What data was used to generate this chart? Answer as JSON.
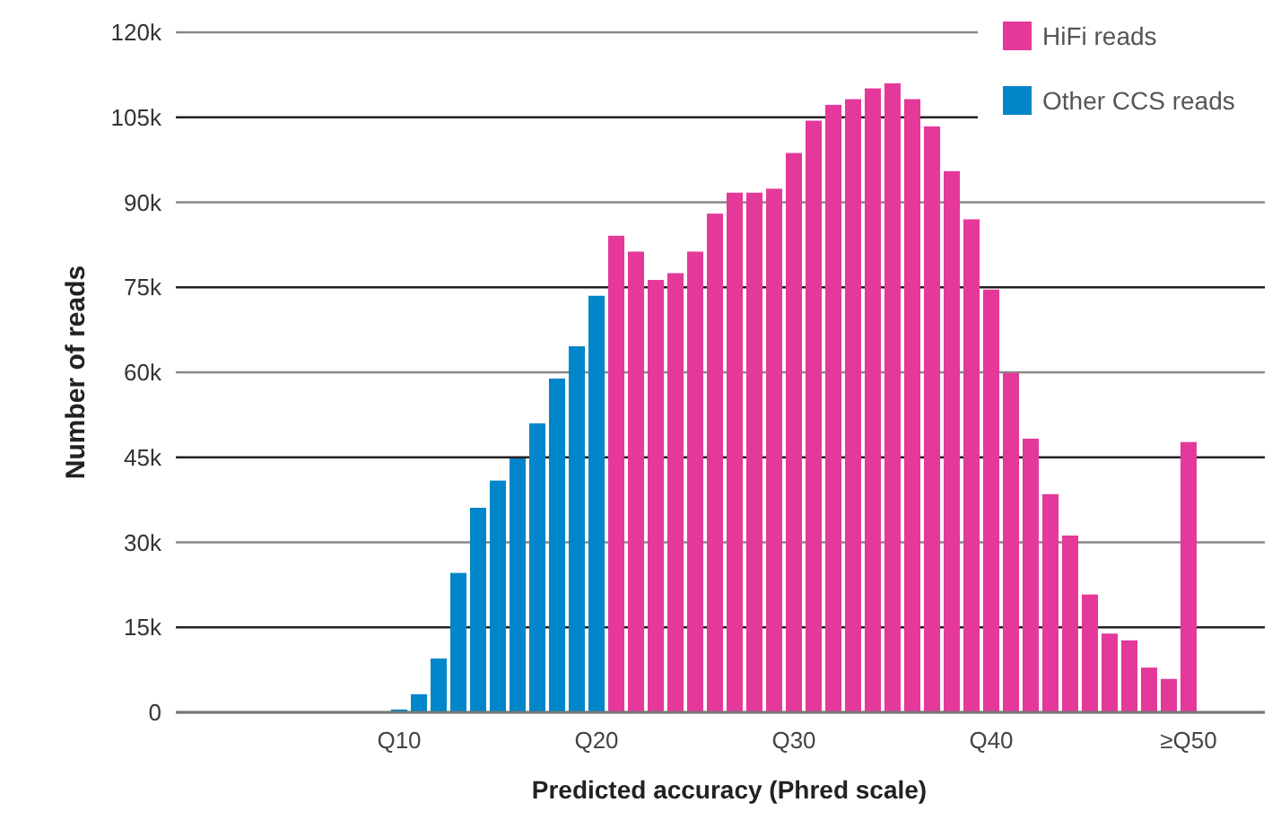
{
  "chart_data": {
    "type": "bar",
    "xlabel": "Predicted accuracy (Phred scale)",
    "ylabel": "Number of reads",
    "categories": [
      null,
      null,
      null,
      null,
      null,
      null,
      null,
      null,
      null,
      null,
      "Q10",
      null,
      null,
      null,
      null,
      null,
      null,
      null,
      null,
      null,
      "Q20",
      null,
      null,
      null,
      null,
      null,
      null,
      null,
      null,
      null,
      "Q30",
      null,
      null,
      null,
      null,
      null,
      null,
      null,
      null,
      null,
      "Q40",
      null,
      null,
      null,
      null,
      null,
      null,
      null,
      null,
      null,
      "≥Q50",
      null,
      null
    ],
    "series": [
      {
        "name": "HiFi reads",
        "color": "#e4399a",
        "values": [
          null,
          null,
          null,
          null,
          null,
          null,
          null,
          null,
          null,
          null,
          null,
          null,
          null,
          null,
          null,
          null,
          null,
          null,
          null,
          null,
          null,
          84100,
          81300,
          76300,
          77500,
          81300,
          88000,
          91700,
          91700,
          92400,
          98700,
          104400,
          107200,
          108200,
          110100,
          111000,
          108200,
          103400,
          95500,
          87000,
          74600,
          59900,
          48300,
          38500,
          31200,
          20800,
          13900,
          12700,
          7900,
          5900,
          47700,
          null,
          null
        ]
      },
      {
        "name": "Other CCS reads",
        "color": "#0086c9",
        "values": [
          null,
          null,
          null,
          null,
          null,
          null,
          null,
          null,
          null,
          null,
          500,
          3200,
          9500,
          24600,
          36100,
          40900,
          44800,
          51000,
          58900,
          64600,
          73500,
          null,
          null,
          null,
          null,
          null,
          null,
          null,
          null,
          null,
          null,
          null,
          null,
          null,
          null,
          null,
          null,
          null,
          null,
          null,
          null,
          null,
          null,
          null,
          null,
          null,
          null,
          null,
          null,
          null,
          null,
          null,
          null
        ]
      }
    ],
    "ylim": [
      0,
      120000
    ],
    "yticks": [
      0,
      {
        "value": 15000,
        "label": "15k"
      },
      {
        "value": 30000,
        "label": "30k"
      },
      {
        "value": 45000,
        "label": "45k"
      },
      {
        "value": 60000,
        "label": "60k"
      },
      {
        "value": 75000,
        "label": "75k"
      },
      {
        "value": 90000,
        "label": "90k"
      },
      {
        "value": 105000,
        "label": "105k"
      },
      {
        "value": 120000,
        "label": "120k"
      }
    ],
    "grid": "y",
    "legend": "top right"
  }
}
